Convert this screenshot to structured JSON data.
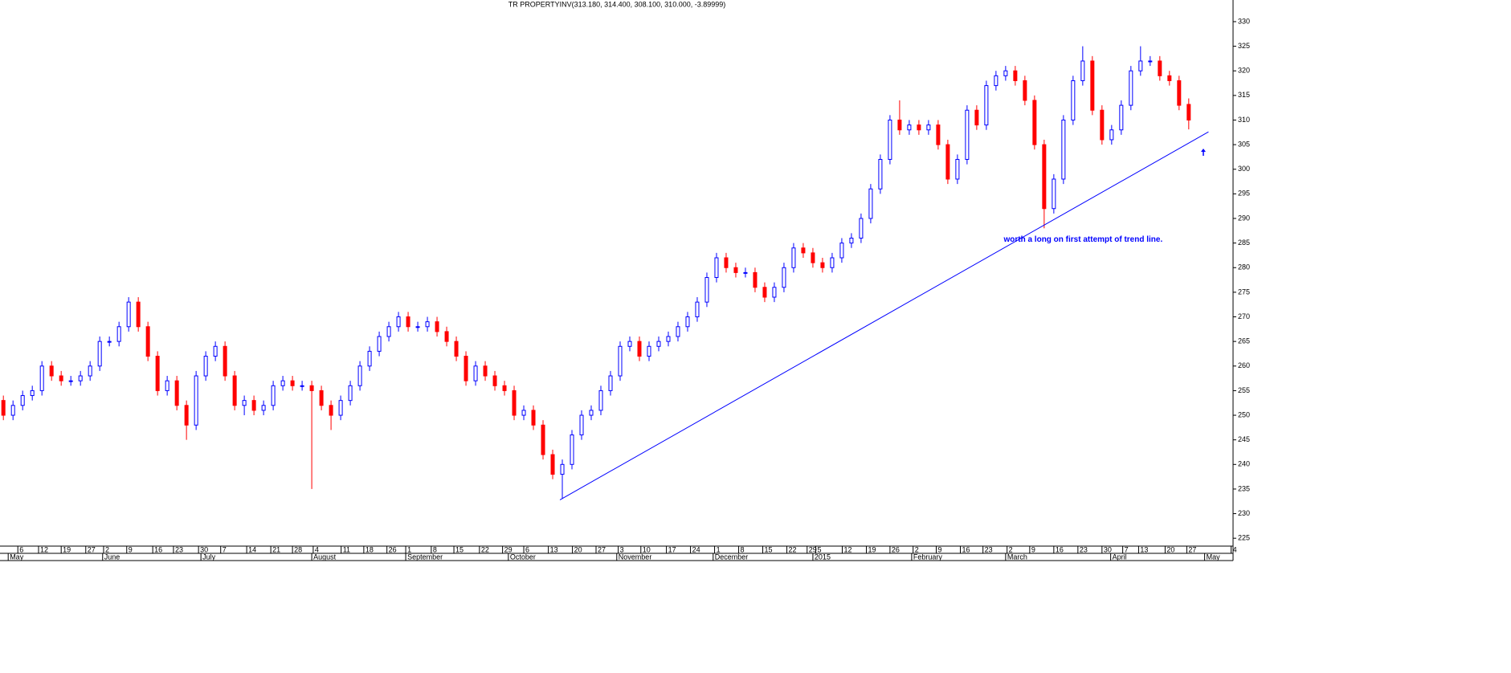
{
  "chart_data": {
    "type": "candlestick",
    "title": "TR PROPERTYINV(313.180, 314.400, 308.100, 310.000, -3.89999)",
    "annotation": {
      "text": "worth a long on first attempt of trend line.",
      "x": 207.6,
      "y": 285.7,
      "color": "#0000ff"
    },
    "trendline": {
      "x": [
        115.5,
        250.1
      ],
      "y": [
        232.8,
        307.6
      ],
      "color": "#0000ff"
    },
    "up_color": "#0000ff",
    "down_color": "#ff0000",
    "x": [
      0,
      2,
      4,
      6,
      8,
      10,
      12,
      14,
      16,
      18,
      20,
      22,
      24,
      26,
      28,
      30,
      32,
      34,
      36,
      38,
      40,
      42,
      44,
      46,
      48,
      50,
      52,
      54,
      56,
      58,
      60,
      62,
      64,
      66,
      68,
      70,
      72,
      74,
      76,
      78,
      80,
      82,
      84,
      86,
      88,
      90,
      92,
      94,
      96,
      98,
      100,
      102,
      104,
      106,
      108,
      110,
      112,
      114,
      116,
      118,
      120,
      122,
      124,
      126,
      128,
      130,
      132,
      134,
      136,
      138,
      140,
      142,
      144,
      146,
      148,
      150,
      152,
      154,
      156,
      158,
      160,
      162,
      164,
      166,
      168,
      170,
      172,
      174,
      176,
      178,
      180,
      182,
      184,
      186,
      188,
      190,
      192,
      194,
      196,
      198,
      200,
      202,
      204,
      206,
      208,
      210,
      212,
      214,
      216,
      218,
      220,
      222,
      224,
      226,
      228,
      230,
      232,
      234,
      236,
      238,
      240,
      242,
      244,
      246
    ],
    "open": [
      253,
      250,
      252,
      254,
      255,
      260,
      258,
      257,
      257,
      258,
      260,
      265,
      265,
      268,
      273,
      268,
      262,
      255,
      257,
      252,
      248,
      258,
      262,
      264,
      258,
      252,
      253,
      251,
      252,
      256,
      257,
      256,
      256,
      255,
      252,
      250,
      253,
      256,
      260,
      263,
      266,
      268,
      270,
      268,
      268,
      269,
      267,
      265,
      262,
      257,
      260,
      258,
      256,
      255,
      250,
      251,
      248,
      242,
      238,
      240,
      246,
      250,
      251,
      255,
      258,
      264,
      265,
      262,
      264,
      265,
      266,
      268,
      270,
      273,
      278,
      282,
      280,
      279,
      279,
      276,
      274,
      276,
      280,
      284,
      283,
      281,
      280,
      282,
      285,
      286,
      290,
      296,
      302,
      310,
      308,
      309,
      308,
      309,
      305,
      298,
      302,
      312,
      309,
      317,
      319,
      320,
      318,
      314,
      305,
      292,
      298,
      310,
      318,
      322,
      312,
      306,
      308,
      313,
      320,
      322,
      322,
      319,
      318,
      313.18
    ],
    "high": [
      254,
      253,
      255,
      256,
      261,
      261,
      259,
      258,
      259,
      261,
      266,
      266,
      269,
      274,
      274,
      269,
      263,
      258,
      258,
      253,
      259,
      263,
      265,
      265,
      259,
      254,
      254,
      253,
      257,
      258,
      258,
      257,
      257,
      256,
      253,
      254,
      257,
      261,
      264,
      267,
      269,
      271,
      271,
      269,
      270,
      270,
      268,
      266,
      263,
      261,
      261,
      259,
      257,
      256,
      252,
      252,
      249,
      243,
      241,
      247,
      251,
      252,
      256,
      259,
      265,
      266,
      266,
      265,
      266,
      267,
      269,
      271,
      274,
      279,
      283,
      283,
      281,
      280,
      280,
      277,
      277,
      281,
      285,
      285,
      284,
      282,
      283,
      286,
      287,
      291,
      297,
      303,
      311,
      314,
      310,
      310,
      310,
      310,
      306,
      303,
      313,
      313,
      318,
      320,
      321,
      321,
      319,
      315,
      306,
      299,
      311,
      319,
      325,
      323,
      313,
      309,
      314,
      321,
      325,
      323,
      323,
      320,
      319,
      314.4
    ],
    "low": [
      249,
      249,
      251,
      253,
      254,
      257,
      256,
      256,
      256,
      257,
      259,
      264,
      264,
      267,
      267,
      261,
      254,
      254,
      251,
      245,
      247,
      257,
      261,
      257,
      251,
      250,
      250,
      250,
      251,
      255,
      255,
      255,
      235,
      251,
      247,
      249,
      252,
      255,
      259,
      262,
      265,
      267,
      267,
      267,
      267,
      266,
      264,
      261,
      256,
      256,
      257,
      255,
      254,
      249,
      249,
      247,
      241,
      237,
      233,
      239,
      245,
      249,
      250,
      254,
      257,
      263,
      261,
      261,
      263,
      264,
      265,
      267,
      269,
      272,
      277,
      279,
      278,
      278,
      275,
      273,
      273,
      275,
      279,
      282,
      280,
      279,
      279,
      281,
      284,
      285,
      289,
      295,
      301,
      307,
      307,
      307,
      307,
      304,
      297,
      297,
      301,
      308,
      308,
      316,
      318,
      317,
      313,
      304,
      288,
      291,
      297,
      309,
      317,
      311,
      305,
      305,
      307,
      312,
      319,
      321,
      318,
      317,
      312,
      308.1
    ],
    "close": [
      250,
      252,
      254,
      255,
      260,
      258,
      257,
      257,
      258,
      260,
      265,
      265,
      268,
      273,
      268,
      262,
      255,
      257,
      252,
      248,
      258,
      262,
      264,
      258,
      252,
      253,
      251,
      252,
      256,
      257,
      256,
      256,
      255,
      252,
      250,
      253,
      256,
      260,
      263,
      266,
      268,
      270,
      268,
      268,
      269,
      267,
      265,
      262,
      257,
      260,
      258,
      256,
      255,
      250,
      251,
      248,
      242,
      238,
      240,
      246,
      250,
      251,
      255,
      258,
      264,
      265,
      262,
      264,
      265,
      266,
      268,
      270,
      273,
      278,
      282,
      280,
      279,
      279,
      276,
      274,
      276,
      280,
      284,
      283,
      281,
      280,
      282,
      285,
      286,
      290,
      296,
      302,
      310,
      308,
      309,
      308,
      309,
      305,
      298,
      302,
      312,
      309,
      317,
      319,
      320,
      318,
      314,
      305,
      292,
      298,
      310,
      318,
      322,
      312,
      306,
      308,
      313,
      320,
      322,
      322,
      319,
      318,
      313,
      310
    ],
    "xlim": [
      -0.7,
      255.2
    ],
    "ylim": [
      223.4,
      334.4
    ],
    "yticks": [
      225,
      230,
      235,
      240,
      245,
      250,
      255,
      260,
      265,
      270,
      275,
      280,
      285,
      290,
      295,
      300,
      305,
      310,
      315,
      320,
      325,
      330
    ],
    "xticks": [
      {
        "value": 3,
        "label": "6"
      },
      {
        "value": 7.3,
        "label": "12"
      },
      {
        "value": 12,
        "label": "19"
      },
      {
        "value": 17.1,
        "label": "27"
      },
      {
        "value": 20.8,
        "label": "2"
      },
      {
        "value": 25.6,
        "label": "9"
      },
      {
        "value": 31,
        "label": "16"
      },
      {
        "value": 35.3,
        "label": "23"
      },
      {
        "value": 40.5,
        "label": "30"
      },
      {
        "value": 45.1,
        "label": "7"
      },
      {
        "value": 50.5,
        "label": "14"
      },
      {
        "value": 55.5,
        "label": "21"
      },
      {
        "value": 60,
        "label": "28"
      },
      {
        "value": 64.3,
        "label": "4"
      },
      {
        "value": 70.1,
        "label": "11"
      },
      {
        "value": 74.8,
        "label": "18"
      },
      {
        "value": 79.6,
        "label": "26"
      },
      {
        "value": 83.5,
        "label": "1"
      },
      {
        "value": 88.8,
        "label": "8"
      },
      {
        "value": 93.5,
        "label": "15"
      },
      {
        "value": 98.8,
        "label": "22"
      },
      {
        "value": 103.6,
        "label": "29"
      },
      {
        "value": 108,
        "label": "6"
      },
      {
        "value": 113.1,
        "label": "13"
      },
      {
        "value": 118.1,
        "label": "20"
      },
      {
        "value": 123,
        "label": "27"
      },
      {
        "value": 127.6,
        "label": "3"
      },
      {
        "value": 132.3,
        "label": "10"
      },
      {
        "value": 137.6,
        "label": "17"
      },
      {
        "value": 142.6,
        "label": "24"
      },
      {
        "value": 147.6,
        "label": "1"
      },
      {
        "value": 152.6,
        "label": "8"
      },
      {
        "value": 157.6,
        "label": "15"
      },
      {
        "value": 162.6,
        "label": "22"
      },
      {
        "value": 166.8,
        "label": "29"
      },
      {
        "value": 168.6,
        "label": "5"
      },
      {
        "value": 174.1,
        "label": "12"
      },
      {
        "value": 179.1,
        "label": "19"
      },
      {
        "value": 184,
        "label": "26"
      },
      {
        "value": 188.8,
        "label": "2"
      },
      {
        "value": 193.6,
        "label": "9"
      },
      {
        "value": 198.6,
        "label": "16"
      },
      {
        "value": 203.3,
        "label": "23"
      },
      {
        "value": 208.3,
        "label": "2"
      },
      {
        "value": 213,
        "label": "9"
      },
      {
        "value": 218,
        "label": "16"
      },
      {
        "value": 223,
        "label": "23"
      },
      {
        "value": 228,
        "label": "30"
      },
      {
        "value": 232.3,
        "label": "7"
      },
      {
        "value": 235.6,
        "label": "13"
      },
      {
        "value": 241.1,
        "label": "20"
      },
      {
        "value": 245.6,
        "label": "27"
      },
      {
        "value": 254.8,
        "label": "4"
      }
    ],
    "month_ticks": [
      {
        "value": 1,
        "label": "May"
      },
      {
        "value": 20.6,
        "label": "June"
      },
      {
        "value": 41,
        "label": "July"
      },
      {
        "value": 64,
        "label": "August"
      },
      {
        "value": 83.5,
        "label": "September"
      },
      {
        "value": 104.8,
        "label": "October"
      },
      {
        "value": 127.3,
        "label": "November"
      },
      {
        "value": 147.3,
        "label": "December"
      },
      {
        "value": 168,
        "label": "2015"
      },
      {
        "value": 188.5,
        "label": "February"
      },
      {
        "value": 208,
        "label": "March"
      },
      {
        "value": 229.8,
        "label": "April"
      },
      {
        "value": 249.3,
        "label": "May"
      }
    ]
  }
}
